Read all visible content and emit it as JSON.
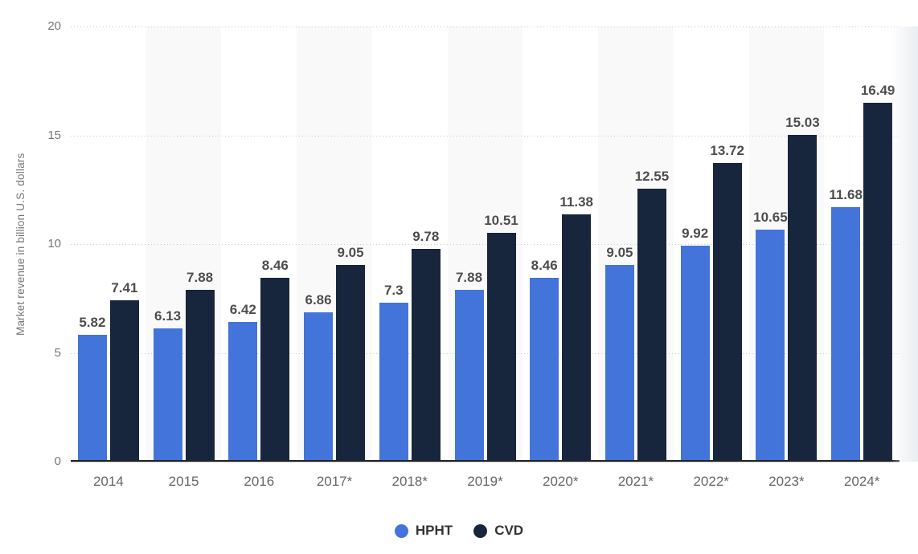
{
  "chart_data": {
    "type": "bar",
    "categories": [
      "2014",
      "2015",
      "2016",
      "2017*",
      "2018*",
      "2019*",
      "2020*",
      "2021*",
      "2022*",
      "2023*",
      "2024*"
    ],
    "series": [
      {
        "name": "HPHT",
        "color": "#4374d9",
        "values": [
          5.82,
          6.13,
          6.42,
          6.86,
          7.3,
          7.88,
          8.46,
          9.05,
          9.92,
          10.65,
          11.68
        ]
      },
      {
        "name": "CVD",
        "color": "#17263c",
        "values": [
          7.41,
          7.88,
          8.46,
          9.05,
          9.78,
          10.51,
          11.38,
          12.55,
          13.72,
          15.03,
          16.49
        ]
      }
    ],
    "xlabel": "",
    "ylabel": "Market revenue in billion U.S. dollars",
    "ylim": [
      0,
      20
    ],
    "yticks": [
      0,
      5,
      10,
      15,
      20
    ],
    "grid": "horizontal-dotted",
    "legend_position": "bottom-center",
    "column_stripes": {
      "color": "#f9f9f9",
      "pattern": "every second category column starting at 2015"
    }
  },
  "colors": {
    "background": "#ffffff",
    "hpht_blue": "#4374d9",
    "cvd_navy": "#17263c",
    "gridline": "#c9c9c9",
    "axis_line": "#222222",
    "tick_label": "#757575",
    "x_label": "#666666",
    "data_label": "#4d4d4d",
    "legend_text": "#333333",
    "stripe": "#f9f9f9"
  }
}
